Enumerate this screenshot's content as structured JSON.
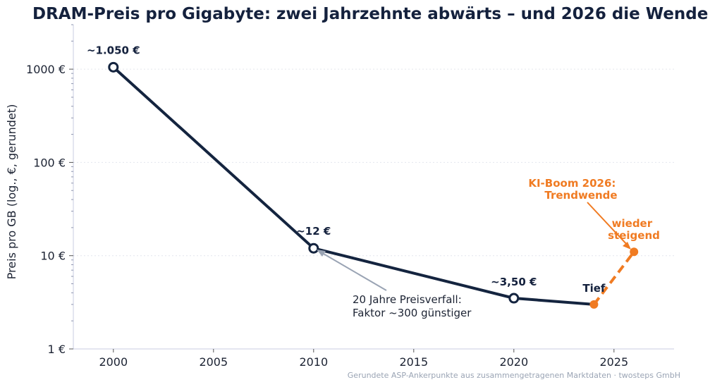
{
  "chart_data": {
    "type": "line",
    "title": "DRAM-Preis pro Gigabyte: zwei Jahrzehnte abwärts – und 2026 die Wende",
    "xlabel": "",
    "ylabel": "Preis pro GB (log., €, gerundet)",
    "y_scale": "log",
    "xlim": [
      1998,
      2028
    ],
    "ylim": [
      1,
      3000
    ],
    "x_ticks": [
      2000,
      2005,
      2010,
      2015,
      2020,
      2025
    ],
    "x_tick_labels": [
      "2000",
      "2005",
      "2010",
      "2015",
      "2020",
      "2025"
    ],
    "y_ticks": [
      1,
      10,
      100,
      1000
    ],
    "y_tick_labels": [
      "1 €",
      "10 €",
      "100 €",
      "1000 €"
    ],
    "grid": "horizontal, dotted",
    "legend": "none",
    "series": [
      {
        "style": "solid",
        "color": "#14243f",
        "points": [
          {
            "x": 2000,
            "y": 1050,
            "label": "~1.050 €"
          },
          {
            "x": 2010,
            "y": 12,
            "label": "~12 €"
          },
          {
            "x": 2020,
            "y": 3.5,
            "label": "~3,50 €"
          },
          {
            "x": 2024,
            "y": 3.0,
            "label": "Tief"
          }
        ]
      },
      {
        "style": "dashed",
        "color": "#f07b22",
        "points": [
          {
            "x": 2024,
            "y": 3.0
          },
          {
            "x": 2026,
            "y": 11
          }
        ]
      }
    ],
    "annotations": {
      "decline_note_lines": [
        "20 Jahre Preisverfall:",
        "Faktor ~300 günstiger"
      ],
      "boom_label_lines": [
        "KI-Boom 2026:",
        "Trendwende"
      ],
      "rising_label_lines": [
        "wieder",
        "steigend"
      ]
    },
    "source": "Gerundete ASP-Ankerpunkte aus zusammengetragenen Marktdaten · twosteps GmbH"
  }
}
